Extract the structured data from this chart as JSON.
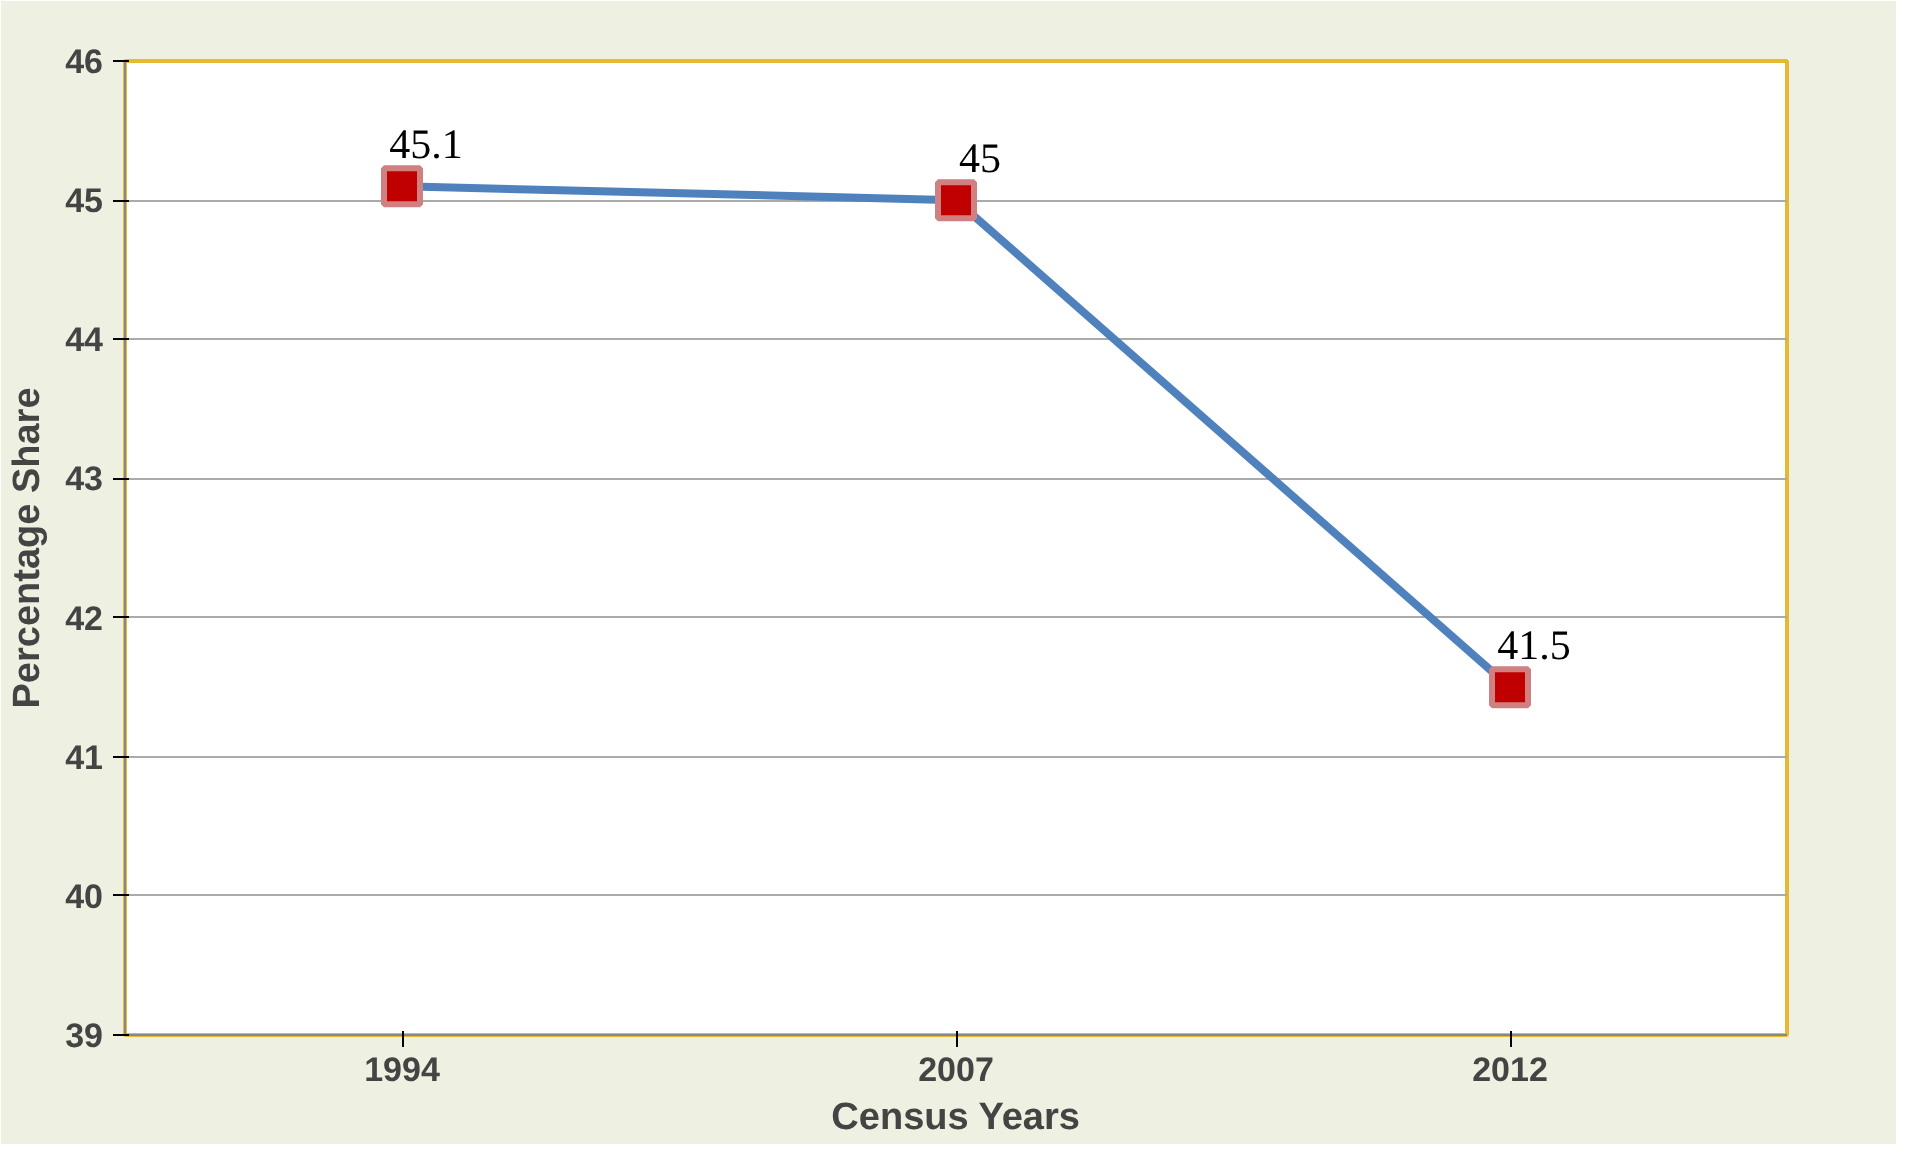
{
  "chart_data": {
    "type": "line",
    "xlabel": "Census Years",
    "ylabel": "Percentage Share",
    "categories": [
      "1994",
      "2007",
      "2012"
    ],
    "series": [
      {
        "color": "#4f81bd",
        "values": [
          45.1,
          45,
          41.5
        ]
      }
    ],
    "ylim": [
      39,
      46
    ],
    "yticks": [
      39,
      40,
      41,
      42,
      43,
      44,
      45,
      46
    ],
    "grid": "y",
    "marker": "square",
    "line_style": "solid",
    "data_labels": true
  }
}
